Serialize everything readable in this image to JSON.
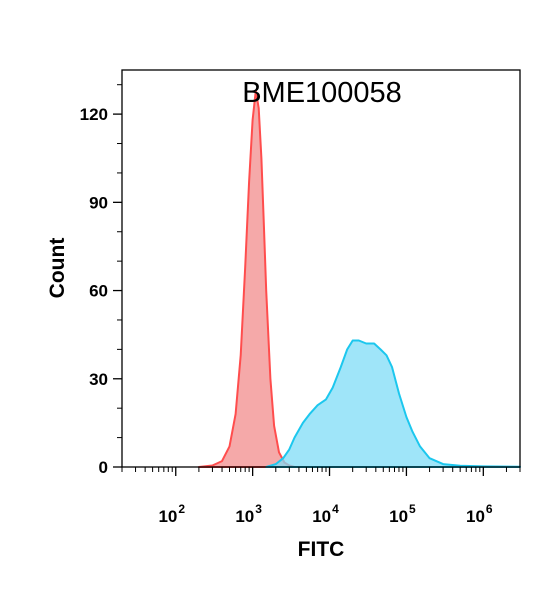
{
  "chart_data": {
    "type": "area",
    "title": "BME100058",
    "xlabel": "FITC",
    "ylabel": "Count",
    "xscale": "log",
    "xlim": [
      20,
      3000000
    ],
    "ylim": [
      0,
      135
    ],
    "x_ticks": [
      {
        "base": "10",
        "exp": "2",
        "value": 100
      },
      {
        "base": "10",
        "exp": "3",
        "value": 1000
      },
      {
        "base": "10",
        "exp": "4",
        "value": 10000
      },
      {
        "base": "10",
        "exp": "5",
        "value": 100000
      },
      {
        "base": "10",
        "exp": "6",
        "value": 1000000
      }
    ],
    "y_ticks": [
      0,
      30,
      60,
      90,
      120
    ],
    "grid": false,
    "series": [
      {
        "color": "#f4a0a0",
        "stroke": "#ff4d4d",
        "points": [
          [
            200,
            0
          ],
          [
            300,
            0.5
          ],
          [
            400,
            2
          ],
          [
            500,
            7
          ],
          [
            600,
            18
          ],
          [
            700,
            38
          ],
          [
            800,
            68
          ],
          [
            900,
            97
          ],
          [
            1000,
            118
          ],
          [
            1100,
            128
          ],
          [
            1200,
            122
          ],
          [
            1300,
            105
          ],
          [
            1400,
            82
          ],
          [
            1500,
            60
          ],
          [
            1700,
            30
          ],
          [
            1900,
            14
          ],
          [
            2200,
            5
          ],
          [
            2600,
            1.5
          ],
          [
            3000,
            0.5
          ],
          [
            3500,
            0
          ]
        ]
      },
      {
        "color": "#7fdcf7",
        "stroke": "#1cc7ee",
        "points": [
          [
            1500,
            0
          ],
          [
            2000,
            1
          ],
          [
            2500,
            3
          ],
          [
            3000,
            6
          ],
          [
            3500,
            10
          ],
          [
            4500,
            15
          ],
          [
            5500,
            18
          ],
          [
            7000,
            21
          ],
          [
            9000,
            23
          ],
          [
            11000,
            27
          ],
          [
            14000,
            34
          ],
          [
            17000,
            40
          ],
          [
            20000,
            43
          ],
          [
            24000,
            43
          ],
          [
            30000,
            42
          ],
          [
            38000,
            42
          ],
          [
            46000,
            40
          ],
          [
            55000,
            38
          ],
          [
            65000,
            34
          ],
          [
            80000,
            25
          ],
          [
            100000,
            17
          ],
          [
            120000,
            12
          ],
          [
            150000,
            7
          ],
          [
            200000,
            3
          ],
          [
            300000,
            1
          ],
          [
            500000,
            0.4
          ],
          [
            1000000,
            0.2
          ],
          [
            3000000,
            0.1
          ]
        ]
      }
    ]
  }
}
